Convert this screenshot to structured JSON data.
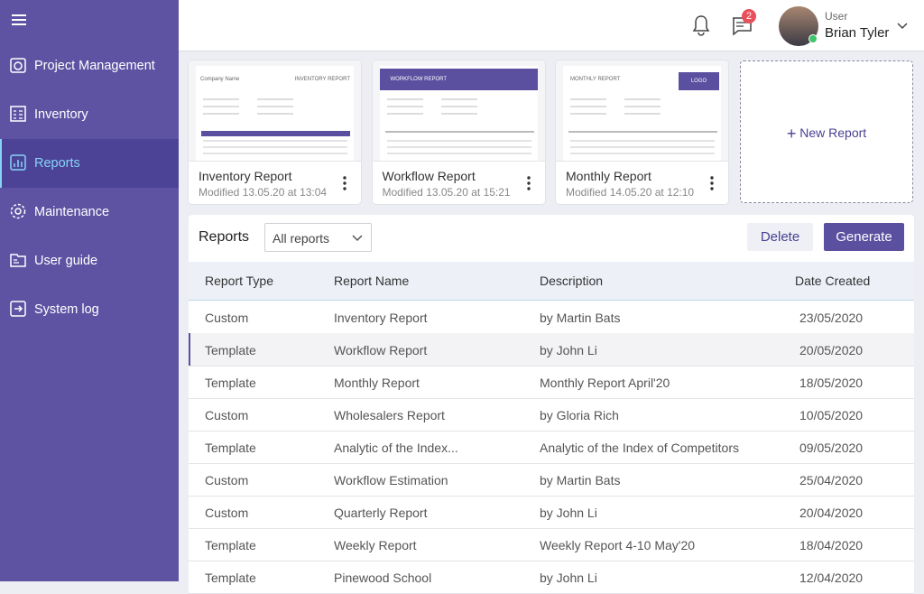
{
  "sidebar": {
    "items": [
      {
        "label": "Project Management"
      },
      {
        "label": "Inventory"
      },
      {
        "label": "Reports",
        "active": true
      },
      {
        "label": "Maintenance"
      },
      {
        "label": "User guide"
      },
      {
        "label": "System log"
      }
    ]
  },
  "topbar": {
    "message_count": 2,
    "user_role": "User",
    "user_name": "Brian Tyler"
  },
  "report_cards": [
    {
      "title": "Inventory Report",
      "modified": "Modified 13.05.20 at 13:04",
      "thumbnail": {
        "company": "Company Name",
        "heading": "INVENTORY REPORT"
      }
    },
    {
      "title": "Workflow Report",
      "modified": "Modified 13.05.20 at 15:21",
      "thumbnail": {
        "heading": "WORKFLOW REPORT"
      }
    },
    {
      "title": "Monthly Report",
      "modified": "Modified 14.05.20 at 12:10",
      "thumbnail": {
        "heading": "MONTHLY REPORT",
        "logo": "LOGO"
      }
    }
  ],
  "new_report": "New Report",
  "table": {
    "title": "Reports",
    "filter": "All reports",
    "actions": [
      "Delete",
      "Generate"
    ],
    "columns": [
      "Report Type",
      "Report Name",
      "Description",
      "Date Created"
    ],
    "selected_row": 1,
    "rows": [
      [
        "Custom",
        "Inventory Report",
        "by Martin Bats",
        "23/05/2020"
      ],
      [
        "Template",
        "Workflow Report",
        "by John Li",
        "20/05/2020"
      ],
      [
        "Template",
        "Monthly Report",
        "Monthly Report April'20",
        "18/05/2020"
      ],
      [
        "Custom",
        "Wholesalers Report",
        "by Gloria Rich",
        "10/05/2020"
      ],
      [
        "Template",
        "Analytic of the Index...",
        "Analytic of the Index of Competitors",
        "09/05/2020"
      ],
      [
        "Custom",
        "Workflow Estimation",
        "by Martin Bats",
        "25/04/2020"
      ],
      [
        "Custom",
        "Quarterly Report",
        "by John Li",
        "20/04/2020"
      ],
      [
        "Template",
        "Weekly Report",
        "Weekly Report 4-10 May'20",
        "18/04/2020"
      ],
      [
        "Template",
        "Pinewood School",
        "by John Li",
        "12/04/2020"
      ]
    ]
  }
}
